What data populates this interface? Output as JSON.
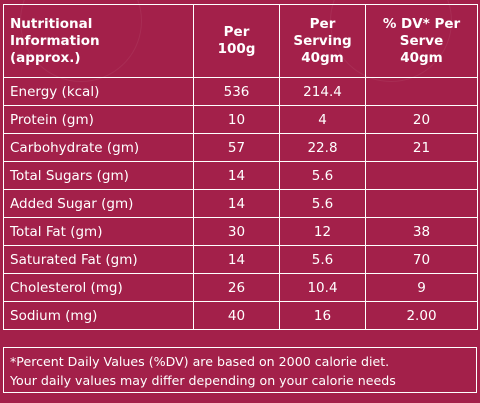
{
  "table": {
    "headers": [
      "Nutritional Information (approx.)",
      "Per 100g",
      "Per Serving 40gm",
      "% DV* Per Serve 40gm"
    ],
    "rows": [
      {
        "label": "Energy (kcal)",
        "per100": "536",
        "perServing": "214.4",
        "dv": ""
      },
      {
        "label": "Protein (gm)",
        "per100": "10",
        "perServing": "4",
        "dv": "20"
      },
      {
        "label": "Carbohydrate (gm)",
        "per100": "57",
        "perServing": "22.8",
        "dv": "21"
      },
      {
        "label": "Total Sugars (gm)",
        "per100": "14",
        "perServing": "5.6",
        "dv": ""
      },
      {
        "label": "Added Sugar (gm)",
        "per100": "14",
        "perServing": "5.6",
        "dv": ""
      },
      {
        "label": "Total Fat (gm)",
        "per100": "30",
        "perServing": "12",
        "dv": "38"
      },
      {
        "label": "Saturated Fat (gm)",
        "per100": "14",
        "perServing": "5.6",
        "dv": "70"
      },
      {
        "label": "Cholesterol (mg)",
        "per100": "26",
        "perServing": "10.4",
        "dv": "9"
      },
      {
        "label": "Sodium (mg)",
        "per100": "40",
        "perServing": "16",
        "dv": "2.00"
      }
    ]
  },
  "footnote": {
    "line1": "*Percent Daily Values (%DV) are based on 2000 calorie diet.",
    "line2": "Your daily values may differ depending on your calorie needs"
  },
  "colors": {
    "background": "#a3204a",
    "text": "#ffffff",
    "border": "#ffffff"
  }
}
